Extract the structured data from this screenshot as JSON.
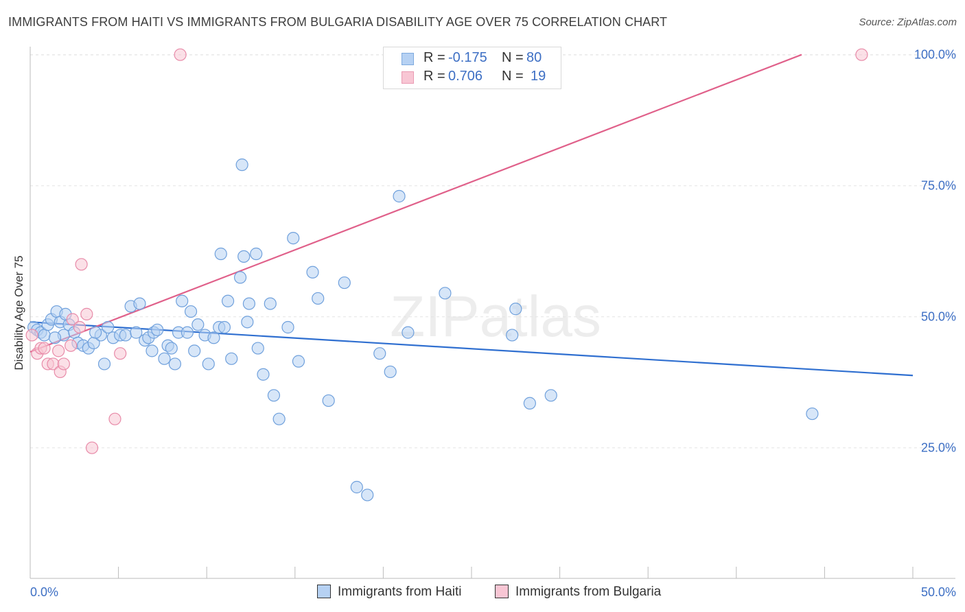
{
  "title": "IMMIGRANTS FROM HAITI VS IMMIGRANTS FROM BULGARIA DISABILITY AGE OVER 75 CORRELATION CHART",
  "source": "Source: ZipAtlas.com",
  "watermark": "ZIPatlas",
  "stats": [
    {
      "r_label": "R =",
      "r_value": "-0.175",
      "n_label": "N =",
      "n_value": "80",
      "color": "#b6d1f3"
    },
    {
      "r_label": "R =",
      "r_value": "0.706",
      "n_label": "N =",
      "n_value": "19",
      "color": "#f8c6d4"
    }
  ],
  "legend": [
    {
      "label": "Immigrants from Haiti",
      "color": "#b6d1f3"
    },
    {
      "label": "Immigrants from Bulgaria",
      "color": "#f8c6d4"
    }
  ],
  "chart_data": {
    "type": "scatter",
    "title": "IMMIGRANTS FROM HAITI VS IMMIGRANTS FROM BULGARIA DISABILITY AGE OVER 75 CORRELATION CHART",
    "xlabel": "",
    "ylabel": "Disability Age Over 75",
    "xlim": [
      0,
      50
    ],
    "ylim": [
      0,
      102
    ],
    "x_tick_labels": [
      "0.0%",
      "50.0%"
    ],
    "y_ticks": [
      25,
      50,
      75,
      100
    ],
    "y_tick_labels": [
      "25.0%",
      "50.0%",
      "75.0%",
      "100.0%"
    ],
    "grid": true,
    "legend_position": "bottom",
    "series": [
      {
        "name": "Immigrants from Haiti",
        "color": "#6fa0dc",
        "fill": "#b6d1f3",
        "trend": {
          "x": [
            0,
            50
          ],
          "y": [
            49.0,
            38.8
          ],
          "color": "#2f6fd0"
        },
        "points": [
          [
            0.2,
            48
          ],
          [
            0.4,
            47.5
          ],
          [
            0.6,
            47
          ],
          [
            0.8,
            46.5
          ],
          [
            1.0,
            48.5
          ],
          [
            1.2,
            49.5
          ],
          [
            1.5,
            51
          ],
          [
            1.7,
            49
          ],
          [
            1.9,
            46.5
          ],
          [
            2.2,
            48.5
          ],
          [
            2.5,
            47
          ],
          [
            2.7,
            45
          ],
          [
            3.0,
            44.5
          ],
          [
            3.3,
            44
          ],
          [
            3.6,
            45
          ],
          [
            4.0,
            46.5
          ],
          [
            4.2,
            41
          ],
          [
            4.4,
            48
          ],
          [
            4.7,
            46
          ],
          [
            5.1,
            46.5
          ],
          [
            5.4,
            46.5
          ],
          [
            5.7,
            52
          ],
          [
            6.0,
            47
          ],
          [
            6.2,
            52.5
          ],
          [
            6.5,
            45.5
          ],
          [
            6.7,
            46
          ],
          [
            6.9,
            43.5
          ],
          [
            7.0,
            47
          ],
          [
            7.2,
            47.5
          ],
          [
            7.6,
            42
          ],
          [
            7.8,
            44.5
          ],
          [
            8.0,
            44
          ],
          [
            8.2,
            41
          ],
          [
            8.4,
            47
          ],
          [
            8.6,
            53
          ],
          [
            8.9,
            47
          ],
          [
            9.1,
            51
          ],
          [
            9.3,
            43.5
          ],
          [
            9.5,
            48.5
          ],
          [
            9.9,
            46.5
          ],
          [
            10.1,
            41
          ],
          [
            10.4,
            46
          ],
          [
            10.7,
            48
          ],
          [
            10.8,
            62
          ],
          [
            11.0,
            48
          ],
          [
            11.2,
            53
          ],
          [
            11.4,
            42
          ],
          [
            11.9,
            57.5
          ],
          [
            12.1,
            61.5
          ],
          [
            12.3,
            49
          ],
          [
            12.4,
            52.5
          ],
          [
            12.0,
            79
          ],
          [
            12.8,
            62
          ],
          [
            12.9,
            44
          ],
          [
            13.2,
            39
          ],
          [
            13.6,
            52.5
          ],
          [
            13.8,
            35
          ],
          [
            14.1,
            30.5
          ],
          [
            14.6,
            48
          ],
          [
            14.9,
            65
          ],
          [
            15.2,
            41.5
          ],
          [
            16.0,
            58.5
          ],
          [
            16.3,
            53.5
          ],
          [
            16.9,
            34
          ],
          [
            17.8,
            56.5
          ],
          [
            18.5,
            17.5
          ],
          [
            19.1,
            16
          ],
          [
            19.8,
            43
          ],
          [
            20.4,
            39.5
          ],
          [
            20.9,
            73
          ],
          [
            21.4,
            47
          ],
          [
            23.5,
            54.5
          ],
          [
            27.3,
            46.5
          ],
          [
            27.5,
            51.5
          ],
          [
            28.3,
            33.5
          ],
          [
            29.5,
            35
          ],
          [
            44.3,
            31.5
          ],
          [
            1.4,
            46
          ],
          [
            3.7,
            47
          ],
          [
            2.0,
            50.5
          ]
        ]
      },
      {
        "name": "Immigrants from Bulgaria",
        "color": "#e88aa8",
        "fill": "#f8c6d4",
        "trend": {
          "x": [
            0,
            43.7
          ],
          "y": [
            43.3,
            100
          ],
          "color": "#e0608a"
        },
        "points": [
          [
            0.1,
            46.5
          ],
          [
            0.4,
            43
          ],
          [
            0.6,
            44
          ],
          [
            0.8,
            44
          ],
          [
            1.0,
            41
          ],
          [
            1.3,
            41
          ],
          [
            1.6,
            43.5
          ],
          [
            1.7,
            39.5
          ],
          [
            1.9,
            41
          ],
          [
            2.3,
            44.5
          ],
          [
            2.4,
            49.5
          ],
          [
            2.8,
            48
          ],
          [
            2.9,
            60
          ],
          [
            3.2,
            50.5
          ],
          [
            3.5,
            25
          ],
          [
            4.8,
            30.5
          ],
          [
            5.1,
            43
          ],
          [
            8.5,
            100
          ],
          [
            47.1,
            100
          ]
        ]
      }
    ]
  }
}
